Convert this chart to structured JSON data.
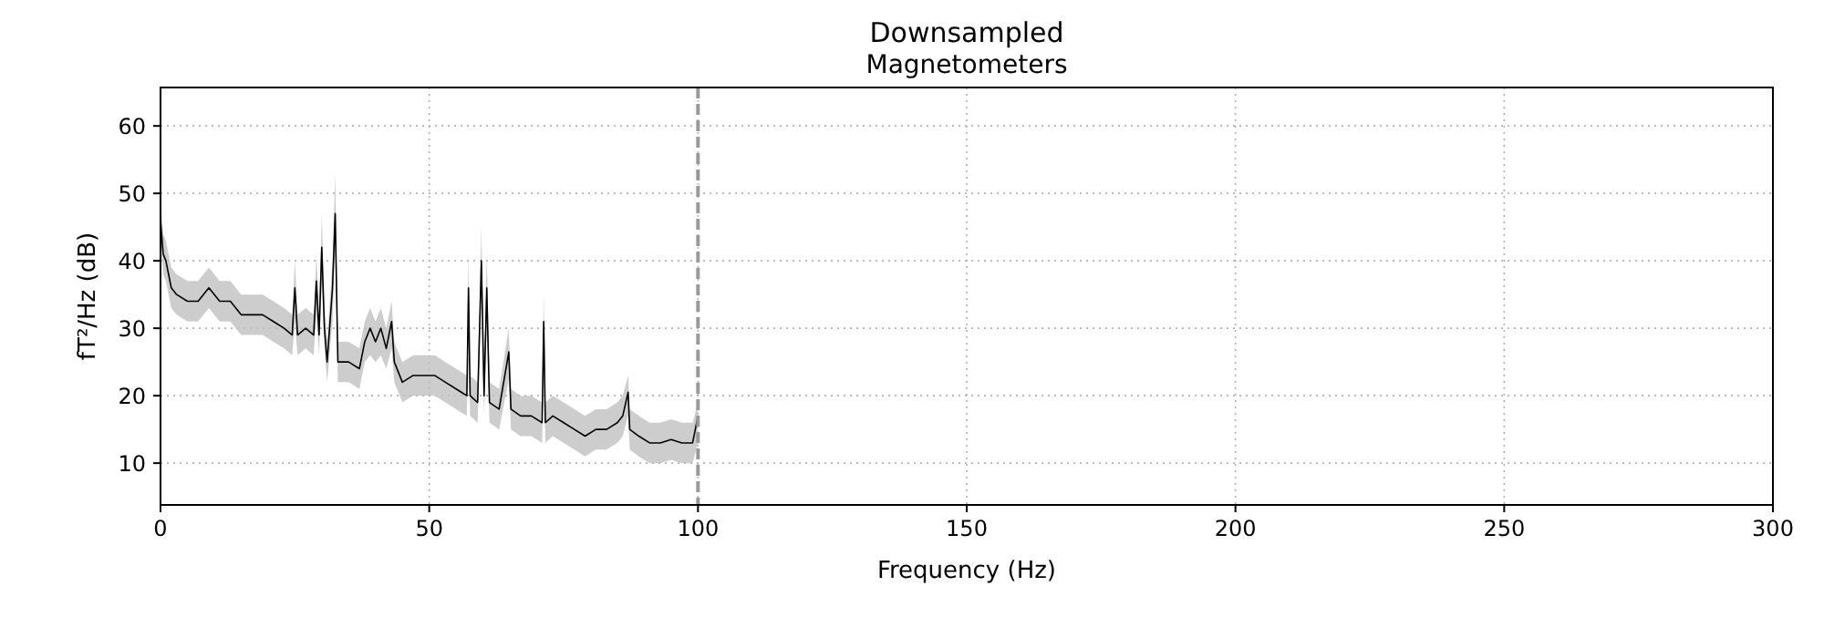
{
  "chart_data": {
    "type": "line",
    "title": "Downsampled",
    "subtitle": "Magnetometers",
    "xlabel": "Frequency (Hz)",
    "ylabel": "fT²/Hz (dB)",
    "xlim": [
      0,
      300
    ],
    "xticks": [
      0,
      50,
      100,
      150,
      200,
      250,
      300
    ],
    "ylim": [
      3.8,
      65.7
    ],
    "yticks": [
      10,
      20,
      30,
      40,
      50,
      60
    ],
    "grid": true,
    "ref_lines": [
      {
        "axis": "x",
        "value": 100,
        "color": "#999999",
        "line_style": "dashed"
      }
    ],
    "series": [
      {
        "color": "#000000",
        "x": [
          0,
          0.5,
          1,
          2,
          3,
          5,
          7,
          9,
          11,
          13,
          15,
          17,
          19,
          21,
          23,
          24.5,
          25,
          25.5,
          27,
          28.5,
          29,
          29.5,
          30,
          30.5,
          31,
          32,
          32.5,
          33,
          35,
          37,
          38,
          39,
          40,
          41,
          42,
          43,
          43.5,
          45,
          47,
          49,
          51,
          53,
          55,
          57,
          57.3,
          57.6,
          59,
          59.7,
          60.2,
          60.7,
          61.2,
          63,
          64.8,
          65.2,
          67,
          69,
          71,
          71.3,
          71.6,
          73,
          75,
          77,
          79,
          81,
          83,
          85,
          86,
          87,
          87.3,
          89,
          91,
          93,
          95,
          97,
          99,
          100
        ],
        "values": [
          46,
          41,
          40,
          36,
          35,
          34,
          34,
          36,
          34,
          34,
          32,
          32,
          32,
          31,
          30,
          29,
          36,
          29,
          30,
          29,
          37,
          29,
          42,
          30,
          25,
          36,
          47,
          25,
          25,
          24,
          28,
          30,
          28,
          30,
          27,
          31,
          25,
          22,
          23,
          23,
          23,
          22,
          21,
          20,
          36,
          20,
          19,
          40,
          20,
          36,
          19,
          18,
          26.5,
          18,
          17,
          17,
          16,
          31,
          16,
          17,
          16,
          15,
          14,
          15,
          15,
          16,
          17,
          20.5,
          15,
          14,
          13,
          13,
          13.5,
          13,
          13,
          17
        ],
        "lower": [
          43,
          38,
          37,
          33,
          32,
          31,
          31,
          33,
          31,
          31,
          29,
          29,
          29,
          28,
          27,
          26,
          31,
          26,
          27,
          26,
          32,
          26,
          37,
          27,
          22,
          31,
          42,
          22,
          22,
          21,
          25,
          26,
          25,
          26,
          24,
          27,
          22,
          19,
          20,
          20,
          20,
          19,
          18,
          17,
          31,
          17,
          16,
          35,
          17,
          31,
          16,
          15,
          22.5,
          15,
          14,
          14,
          13,
          27,
          13,
          14,
          13,
          12,
          11,
          12,
          12,
          13,
          14,
          17,
          12,
          11,
          10,
          10,
          10.5,
          10,
          10,
          13
        ],
        "upper": [
          49,
          44,
          43,
          39,
          38,
          37,
          37,
          39,
          37,
          37,
          35,
          35,
          35,
          34,
          33,
          32,
          40,
          32,
          33,
          32,
          41,
          32,
          47,
          33,
          28,
          40,
          53,
          28,
          28,
          27,
          31,
          33,
          31,
          33,
          30,
          34,
          28,
          25,
          26,
          26,
          26,
          25,
          24,
          23,
          41,
          23,
          22,
          45,
          23,
          41,
          22,
          21,
          30,
          21,
          20,
          20,
          19,
          35,
          19,
          20,
          19,
          18,
          17,
          18,
          18,
          19,
          20,
          23,
          18,
          17,
          16,
          16,
          16.5,
          16,
          16,
          19
        ]
      }
    ]
  }
}
